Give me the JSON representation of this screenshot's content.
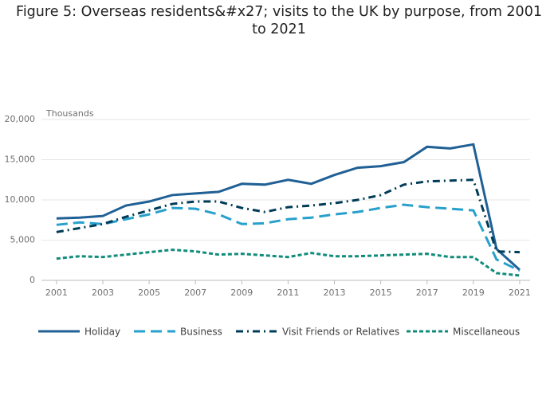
{
  "chart_data": {
    "type": "line",
    "title": "Figure 5: Overseas residents&#x27; visits to the UK by purpose, from 2001 to 2021",
    "y_axis_label": "Thousands",
    "x": [
      2001,
      2002,
      2003,
      2004,
      2005,
      2006,
      2007,
      2008,
      2009,
      2010,
      2011,
      2012,
      2013,
      2014,
      2015,
      2016,
      2017,
      2018,
      2019,
      2020,
      2021
    ],
    "xlim": [
      2000.35,
      2021.45
    ],
    "xticks": [
      2001,
      2003,
      2005,
      2007,
      2009,
      2011,
      2013,
      2015,
      2017,
      2019,
      2021
    ],
    "ylim": [
      0,
      20000
    ],
    "yticks": [
      0,
      {
        "value": 5000,
        "label": "5,000"
      },
      {
        "value": 10000,
        "label": "10,000"
      },
      {
        "value": 15000,
        "label": "15,000"
      },
      {
        "value": 20000,
        "label": "20,000"
      }
    ],
    "grid": true,
    "legend": "bottom",
    "series": [
      {
        "name": "Holiday",
        "color": "#206095",
        "dash": "solid",
        "values": [
          7700,
          7800,
          8000,
          9300,
          9800,
          10600,
          10800,
          11000,
          12000,
          11900,
          12500,
          12000,
          13100,
          14000,
          14200,
          14700,
          16600,
          16400,
          16900,
          3900,
          1300
        ]
      },
      {
        "name": "Business",
        "color": "#27a0cc",
        "dash": "long-dash",
        "values": [
          6900,
          7200,
          7000,
          7600,
          8200,
          9000,
          8900,
          8200,
          7000,
          7100,
          7600,
          7800,
          8200,
          8500,
          9000,
          9400,
          9100,
          8900,
          8700,
          2600,
          1200
        ]
      },
      {
        "name": "Visit Friends or Relatives",
        "color": "#003c57",
        "dash": "dash-dot",
        "values": [
          6000,
          6500,
          7000,
          7900,
          8700,
          9500,
          9800,
          9800,
          9000,
          8500,
          9100,
          9300,
          9600,
          10000,
          10600,
          11900,
          12300,
          12400,
          12500,
          3600,
          3500
        ]
      },
      {
        "name": "Miscellaneous",
        "color": "#118c7b",
        "dash": "short-dash",
        "values": [
          2700,
          3000,
          2900,
          3200,
          3500,
          3800,
          3600,
          3200,
          3300,
          3100,
          2900,
          3400,
          3000,
          3000,
          3100,
          3200,
          3300,
          2900,
          2900,
          900,
          600
        ]
      }
    ]
  }
}
